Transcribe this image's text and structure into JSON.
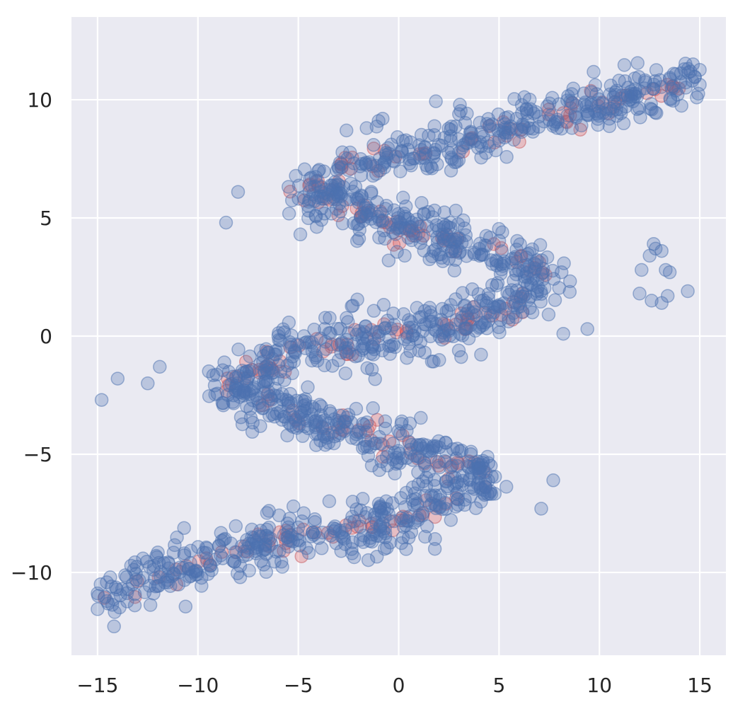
{
  "chart_data": {
    "type": "scatter",
    "title": "",
    "xlabel": "",
    "ylabel": "",
    "xlim": [
      -16.3,
      16.3
    ],
    "ylim": [
      -13.5,
      13.5
    ],
    "grid": true,
    "background_color": "#eaeaf2",
    "x_ticks": [
      -15,
      -10,
      -5,
      0,
      5,
      10,
      15
    ],
    "y_ticks": [
      -10,
      -5,
      0,
      5,
      10
    ],
    "x_tick_labels": [
      "−15",
      "−10",
      "−5",
      "0",
      "5",
      "10",
      "15"
    ],
    "y_tick_labels": [
      "−10",
      "−5",
      "0",
      "5",
      "10"
    ],
    "series": [
      {
        "color": "#c44e52",
        "path": [
          [
            -14.8,
            -11.0
          ],
          [
            -13.0,
            -10.6
          ],
          [
            -10.0,
            -9.6
          ],
          [
            -6.0,
            -8.6
          ],
          [
            -2.0,
            -8.2
          ],
          [
            0.5,
            -7.6
          ],
          [
            2.5,
            -7.0
          ],
          [
            4.5,
            -6.0
          ],
          [
            3.5,
            -5.6
          ],
          [
            1.0,
            -5.0
          ],
          [
            -2.0,
            -4.2
          ],
          [
            -4.5,
            -3.4
          ],
          [
            -6.5,
            -2.8
          ],
          [
            -8.8,
            -2.2
          ],
          [
            -7.0,
            -1.2
          ],
          [
            -3.5,
            -0.4
          ],
          [
            0.0,
            0.1
          ],
          [
            3.0,
            0.6
          ],
          [
            6.0,
            1.5
          ],
          [
            7.5,
            2.3
          ],
          [
            6.0,
            3.2
          ],
          [
            3.0,
            4.0
          ],
          [
            0.0,
            4.7
          ],
          [
            -2.5,
            5.6
          ],
          [
            -5.0,
            6.0
          ],
          [
            -3.0,
            6.8
          ],
          [
            0.0,
            7.8
          ],
          [
            3.0,
            8.3
          ],
          [
            6.0,
            8.9
          ],
          [
            10.0,
            9.8
          ],
          [
            14.7,
            10.8
          ]
        ],
        "spread": 0.3,
        "count": 240,
        "seed": 7
      },
      {
        "color": "#4c72b0",
        "path": [
          [
            -14.8,
            -11.0
          ],
          [
            -13.0,
            -10.6
          ],
          [
            -10.0,
            -9.6
          ],
          [
            -6.0,
            -8.6
          ],
          [
            -2.0,
            -8.2
          ],
          [
            0.5,
            -7.6
          ],
          [
            2.5,
            -7.0
          ],
          [
            4.5,
            -6.0
          ],
          [
            3.5,
            -5.6
          ],
          [
            1.0,
            -5.0
          ],
          [
            -2.0,
            -4.2
          ],
          [
            -4.5,
            -3.4
          ],
          [
            -6.5,
            -2.8
          ],
          [
            -8.8,
            -2.2
          ],
          [
            -7.0,
            -1.2
          ],
          [
            -3.5,
            -0.4
          ],
          [
            0.0,
            0.1
          ],
          [
            3.0,
            0.6
          ],
          [
            6.0,
            1.5
          ],
          [
            7.5,
            2.3
          ],
          [
            6.0,
            3.2
          ],
          [
            3.0,
            4.0
          ],
          [
            0.0,
            4.7
          ],
          [
            -2.5,
            5.6
          ],
          [
            -5.0,
            6.0
          ],
          [
            -3.0,
            6.8
          ],
          [
            0.0,
            7.8
          ],
          [
            3.0,
            8.3
          ],
          [
            6.0,
            8.9
          ],
          [
            10.0,
            9.8
          ],
          [
            14.7,
            10.8
          ]
        ],
        "spread": 0.55,
        "count": 1500,
        "seed": 42,
        "outliers": [
          [
            -14.8,
            -2.7
          ],
          [
            -14.0,
            -1.8
          ],
          [
            -12.5,
            -2.0
          ],
          [
            -11.9,
            -1.3
          ],
          [
            -8.6,
            4.8
          ],
          [
            -8.0,
            6.1
          ],
          [
            -4.9,
            4.3
          ],
          [
            -0.5,
            3.2
          ],
          [
            0.3,
            3.4
          ],
          [
            0.7,
            -6.4
          ],
          [
            1.8,
            -9.0
          ],
          [
            -0.7,
            -9.0
          ],
          [
            7.1,
            -7.3
          ],
          [
            7.7,
            -6.1
          ],
          [
            9.4,
            0.3
          ],
          [
            8.2,
            0.1
          ],
          [
            12.0,
            1.8
          ],
          [
            12.6,
            1.5
          ],
          [
            13.1,
            1.4
          ],
          [
            13.4,
            1.7
          ],
          [
            14.4,
            1.9
          ],
          [
            12.1,
            2.8
          ],
          [
            13.3,
            2.8
          ],
          [
            13.5,
            2.7
          ],
          [
            12.5,
            3.4
          ],
          [
            12.8,
            3.7
          ],
          [
            13.1,
            3.6
          ],
          [
            12.7,
            3.9
          ],
          [
            -2.6,
            8.7
          ],
          [
            -1.0,
            9.1
          ],
          [
            -0.8,
            9.2
          ]
        ]
      }
    ]
  }
}
